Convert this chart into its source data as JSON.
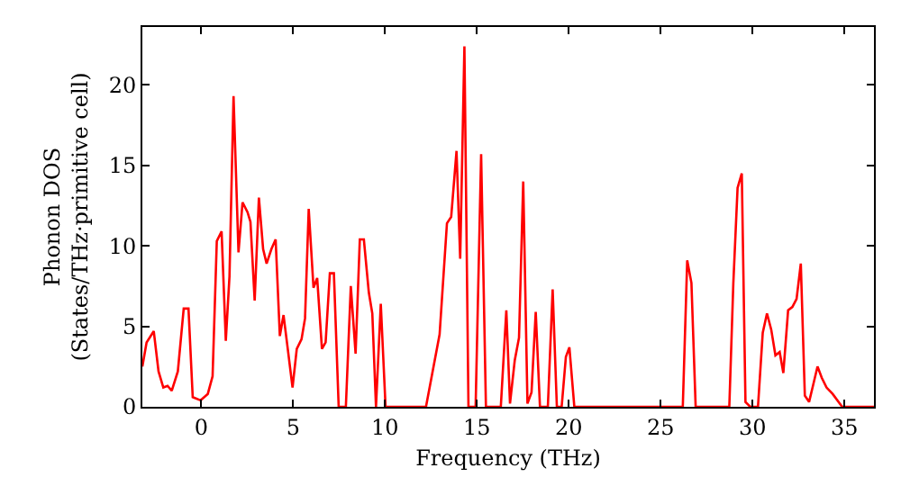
{
  "chart_data": {
    "type": "line",
    "xlabel": "Frequency (THz)",
    "ylabel": "Phonon DOS\n(States/THz·primitive cell)",
    "xlim": [
      -3.2,
      36.6
    ],
    "ylim": [
      0,
      23.6
    ],
    "xticks": [
      0,
      5,
      10,
      15,
      20,
      25,
      30,
      35
    ],
    "yticks": [
      0,
      5,
      10,
      15,
      20
    ],
    "marker": "none",
    "line_style": "solid",
    "series": [
      {
        "color": "#ff0000",
        "x": [
          -3.2,
          -2.97,
          -2.58,
          -2.32,
          -2.06,
          -1.83,
          -1.6,
          -1.27,
          -0.95,
          -0.69,
          -0.46,
          -0.03,
          0.36,
          0.62,
          0.85,
          1.11,
          1.34,
          1.54,
          1.76,
          2.03,
          2.25,
          2.52,
          2.68,
          2.91,
          3.14,
          3.37,
          3.56,
          3.82,
          4.05,
          4.28,
          4.48,
          4.71,
          4.97,
          5.2,
          5.46,
          5.65,
          5.85,
          6.11,
          6.31,
          6.57,
          6.77,
          7.0,
          7.22,
          7.48,
          7.87,
          8.14,
          8.4,
          8.63,
          8.85,
          9.12,
          9.31,
          9.51,
          9.77,
          10.03,
          12.23,
          12.97,
          13.37,
          13.6,
          13.89,
          14.09,
          14.32,
          14.54,
          14.93,
          15.23,
          15.49,
          16.3,
          16.6,
          16.8,
          17.06,
          17.29,
          17.52,
          17.75,
          17.97,
          18.2,
          18.43,
          18.86,
          19.12,
          19.35,
          19.61,
          19.84,
          20.03,
          20.3,
          26.2,
          26.44,
          26.67,
          26.9,
          28.73,
          28.95,
          29.18,
          29.41,
          29.61,
          29.87,
          30.29,
          30.55,
          30.78,
          31.01,
          31.24,
          31.47,
          31.67,
          31.93,
          32.16,
          32.39,
          32.62,
          32.84,
          33.07,
          33.3,
          33.53,
          33.76,
          34.02,
          34.35,
          34.87,
          36.6
        ],
        "values": [
          2.5,
          4.0,
          4.7,
          2.2,
          1.2,
          1.3,
          1.0,
          2.2,
          6.1,
          6.1,
          0.6,
          0.4,
          0.8,
          1.9,
          10.3,
          10.9,
          4.1,
          8.1,
          19.3,
          9.6,
          12.7,
          12.1,
          11.5,
          6.6,
          13.0,
          9.8,
          8.9,
          9.8,
          10.4,
          4.4,
          5.7,
          3.6,
          1.2,
          3.6,
          4.2,
          5.5,
          12.3,
          7.4,
          8.0,
          3.6,
          4.0,
          8.3,
          8.3,
          0,
          0,
          7.5,
          3.3,
          10.4,
          10.4,
          7.1,
          5.8,
          0,
          6.4,
          0,
          0,
          4.5,
          11.4,
          11.8,
          15.9,
          9.2,
          22.4,
          0,
          0,
          15.7,
          0,
          0,
          6.0,
          0.2,
          2.9,
          4.3,
          14.0,
          0.2,
          0.9,
          5.9,
          0,
          0,
          7.3,
          0,
          0,
          3.1,
          3.7,
          0,
          0,
          9.1,
          7.7,
          0,
          0,
          7.7,
          13.6,
          14.5,
          0.3,
          0,
          0,
          4.6,
          5.8,
          4.8,
          3.2,
          3.4,
          2.1,
          6.0,
          6.2,
          6.7,
          8.9,
          0.7,
          0.3,
          1.4,
          2.5,
          1.8,
          1.2,
          0.8,
          0,
          0
        ]
      }
    ]
  }
}
